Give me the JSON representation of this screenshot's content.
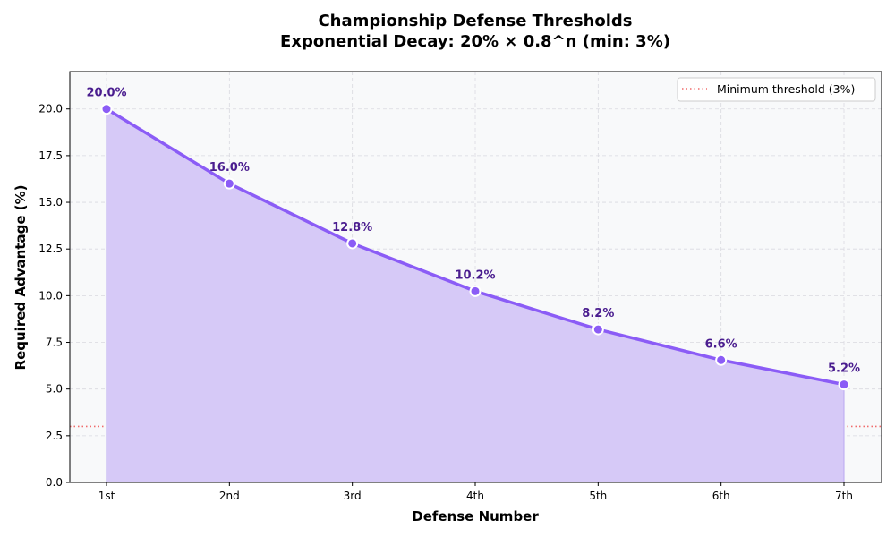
{
  "chart_data": {
    "type": "line",
    "title": "Championship Defense Thresholds",
    "subtitle": "Exponential Decay: 20% × 0.8^n (min: 3%)",
    "xlabel": "Defense Number",
    "ylabel": "Required Advantage (%)",
    "categories": [
      "1st",
      "2nd",
      "3rd",
      "4th",
      "5th",
      "6th",
      "7th"
    ],
    "series": [
      {
        "values": [
          20.0,
          16.0,
          12.8,
          10.24,
          8.192,
          6.5536,
          5.24288
        ],
        "data_labels": [
          "20.0%",
          "16.0%",
          "12.8%",
          "10.2%",
          "8.2%",
          "6.6%",
          "5.2%"
        ],
        "color": "#8b5cf6",
        "fill_color": "#d6c9f7"
      }
    ],
    "reference_line": {
      "name": "Minimum threshold (3%)",
      "value": 3,
      "color": "#f06b6b",
      "style": "dotted"
    },
    "ylim": [
      0,
      22
    ],
    "yticks": [
      0.0,
      2.5,
      5.0,
      7.5,
      10.0,
      12.5,
      15.0,
      17.5,
      20.0
    ],
    "ytick_labels": [
      "0.0",
      "2.5",
      "5.0",
      "7.5",
      "10.0",
      "12.5",
      "15.0",
      "17.5",
      "20.0"
    ],
    "grid": true,
    "legend_position": "top-right",
    "plot_background": "#f8f9fa"
  }
}
